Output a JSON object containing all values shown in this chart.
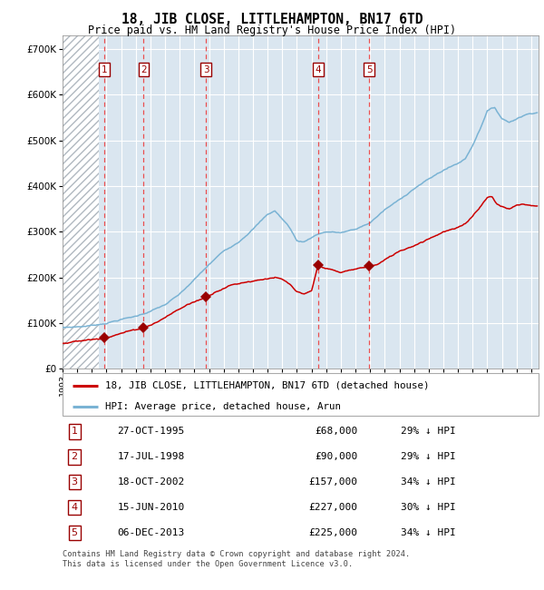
{
  "title": "18, JIB CLOSE, LITTLEHAMPTON, BN17 6TD",
  "subtitle": "Price paid vs. HM Land Registry's House Price Index (HPI)",
  "legend_line1": "18, JIB CLOSE, LITTLEHAMPTON, BN17 6TD (detached house)",
  "legend_line2": "HPI: Average price, detached house, Arun",
  "footer1": "Contains HM Land Registry data © Crown copyright and database right 2024.",
  "footer2": "This data is licensed under the Open Government Licence v3.0.",
  "transactions": [
    {
      "num": 1,
      "date": "27-OCT-1995",
      "price": 68000,
      "pct": "29%",
      "year": 1995.83
    },
    {
      "num": 2,
      "date": "17-JUL-1998",
      "price": 90000,
      "pct": "29%",
      "year": 1998.54
    },
    {
      "num": 3,
      "date": "18-OCT-2002",
      "price": 157000,
      "pct": "34%",
      "year": 2002.8
    },
    {
      "num": 4,
      "date": "15-JUN-2010",
      "price": 227000,
      "pct": "30%",
      "year": 2010.45
    },
    {
      "num": 5,
      "date": "06-DEC-2013",
      "price": 225000,
      "pct": "34%",
      "year": 2013.93
    }
  ],
  "hpi_color": "#7ab3d4",
  "price_color": "#cc0000",
  "marker_color": "#990000",
  "dashed_color": "#ee3333",
  "bg_color": "#dae6f0",
  "ylim": [
    0,
    730000
  ],
  "xlim_start": 1993.0,
  "xlim_end": 2025.5,
  "hatch_end": 1995.5,
  "ylabel_ticks": [
    0,
    100000,
    200000,
    300000,
    400000,
    500000,
    600000,
    700000
  ],
  "xtick_years": [
    1993,
    1994,
    1995,
    1996,
    1997,
    1998,
    1999,
    2000,
    2001,
    2002,
    2003,
    2004,
    2005,
    2006,
    2007,
    2008,
    2009,
    2010,
    2011,
    2012,
    2013,
    2014,
    2015,
    2016,
    2017,
    2018,
    2019,
    2020,
    2021,
    2022,
    2023,
    2024,
    2025
  ]
}
